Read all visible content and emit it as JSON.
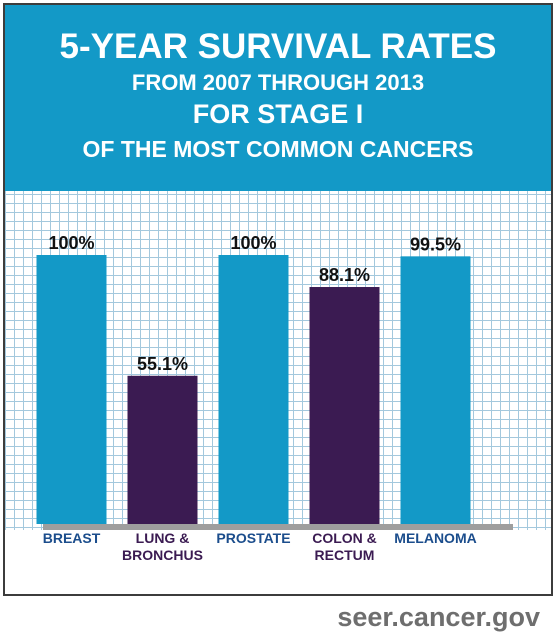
{
  "header": {
    "title": "5-YEAR SURVIVAL RATES",
    "line2": "FROM 2007 THROUGH 2013",
    "line3": "FOR STAGE I",
    "line4": "OF THE MOST COMMON CANCERS"
  },
  "footer": {
    "source": "seer.cancer.gov"
  },
  "colors": {
    "header_bg": "#1399c7",
    "bar_blue": "#1399c7",
    "bar_purple": "#3b1b52",
    "label_blue": "#1b4d8c",
    "label_purple": "#3b1b52",
    "grid": "#a3c8dd",
    "baseline": "#9e9e9e"
  },
  "chart_data": {
    "type": "bar",
    "categories": [
      [
        "BREAST"
      ],
      [
        "LUNG &",
        "BRONCHUS"
      ],
      [
        "PROSTATE"
      ],
      [
        "COLON &",
        "RECTUM"
      ],
      [
        "MELANOMA"
      ]
    ],
    "values": [
      100,
      55.1,
      100,
      88.1,
      99.5
    ],
    "value_labels": [
      "100%",
      "55.1%",
      "100%",
      "88.1%",
      "99.5%"
    ],
    "bar_colors": [
      "#1399c7",
      "#3b1b52",
      "#1399c7",
      "#3b1b52",
      "#1399c7"
    ],
    "label_colors": [
      "#1b4d8c",
      "#3b1b52",
      "#1b4d8c",
      "#3b1b52",
      "#1b4d8c"
    ],
    "ylim": [
      0,
      100
    ],
    "grid": true,
    "legend": "none",
    "xlabel": "",
    "ylabel": ""
  }
}
